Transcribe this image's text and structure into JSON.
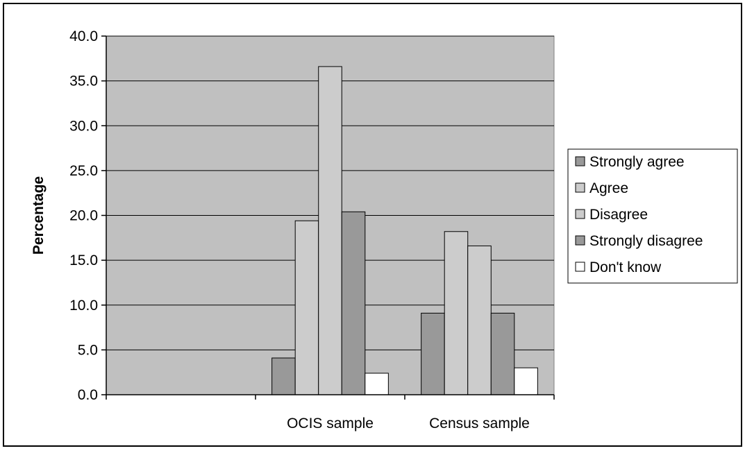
{
  "chart_data": {
    "type": "bar",
    "title": "",
    "xlabel": "",
    "ylabel": "Percentage",
    "ylim": [
      0,
      40
    ],
    "yticks": [
      "0.0",
      "5.0",
      "10.0",
      "15.0",
      "20.0",
      "25.0",
      "30.0",
      "35.0",
      "40.0"
    ],
    "categories": [
      "",
      "OCIS sample",
      "Census sample"
    ],
    "grid": true,
    "legend_position": "right",
    "series": [
      {
        "name": "Strongly agree",
        "color": "#999999",
        "values": [
          null,
          4.1,
          9.1
        ]
      },
      {
        "name": "Agree",
        "color": "#cccccc",
        "values": [
          null,
          19.4,
          18.2
        ]
      },
      {
        "name": "Disagree",
        "color": "#cccccc",
        "values": [
          null,
          36.6,
          16.6
        ]
      },
      {
        "name": "Strongly disagree",
        "color": "#999999",
        "values": [
          null,
          20.4,
          9.1
        ]
      },
      {
        "name": "Don't know",
        "color": "#ffffff",
        "values": [
          null,
          2.4,
          3.0
        ]
      }
    ],
    "plot_background": "#c0c0c0"
  }
}
